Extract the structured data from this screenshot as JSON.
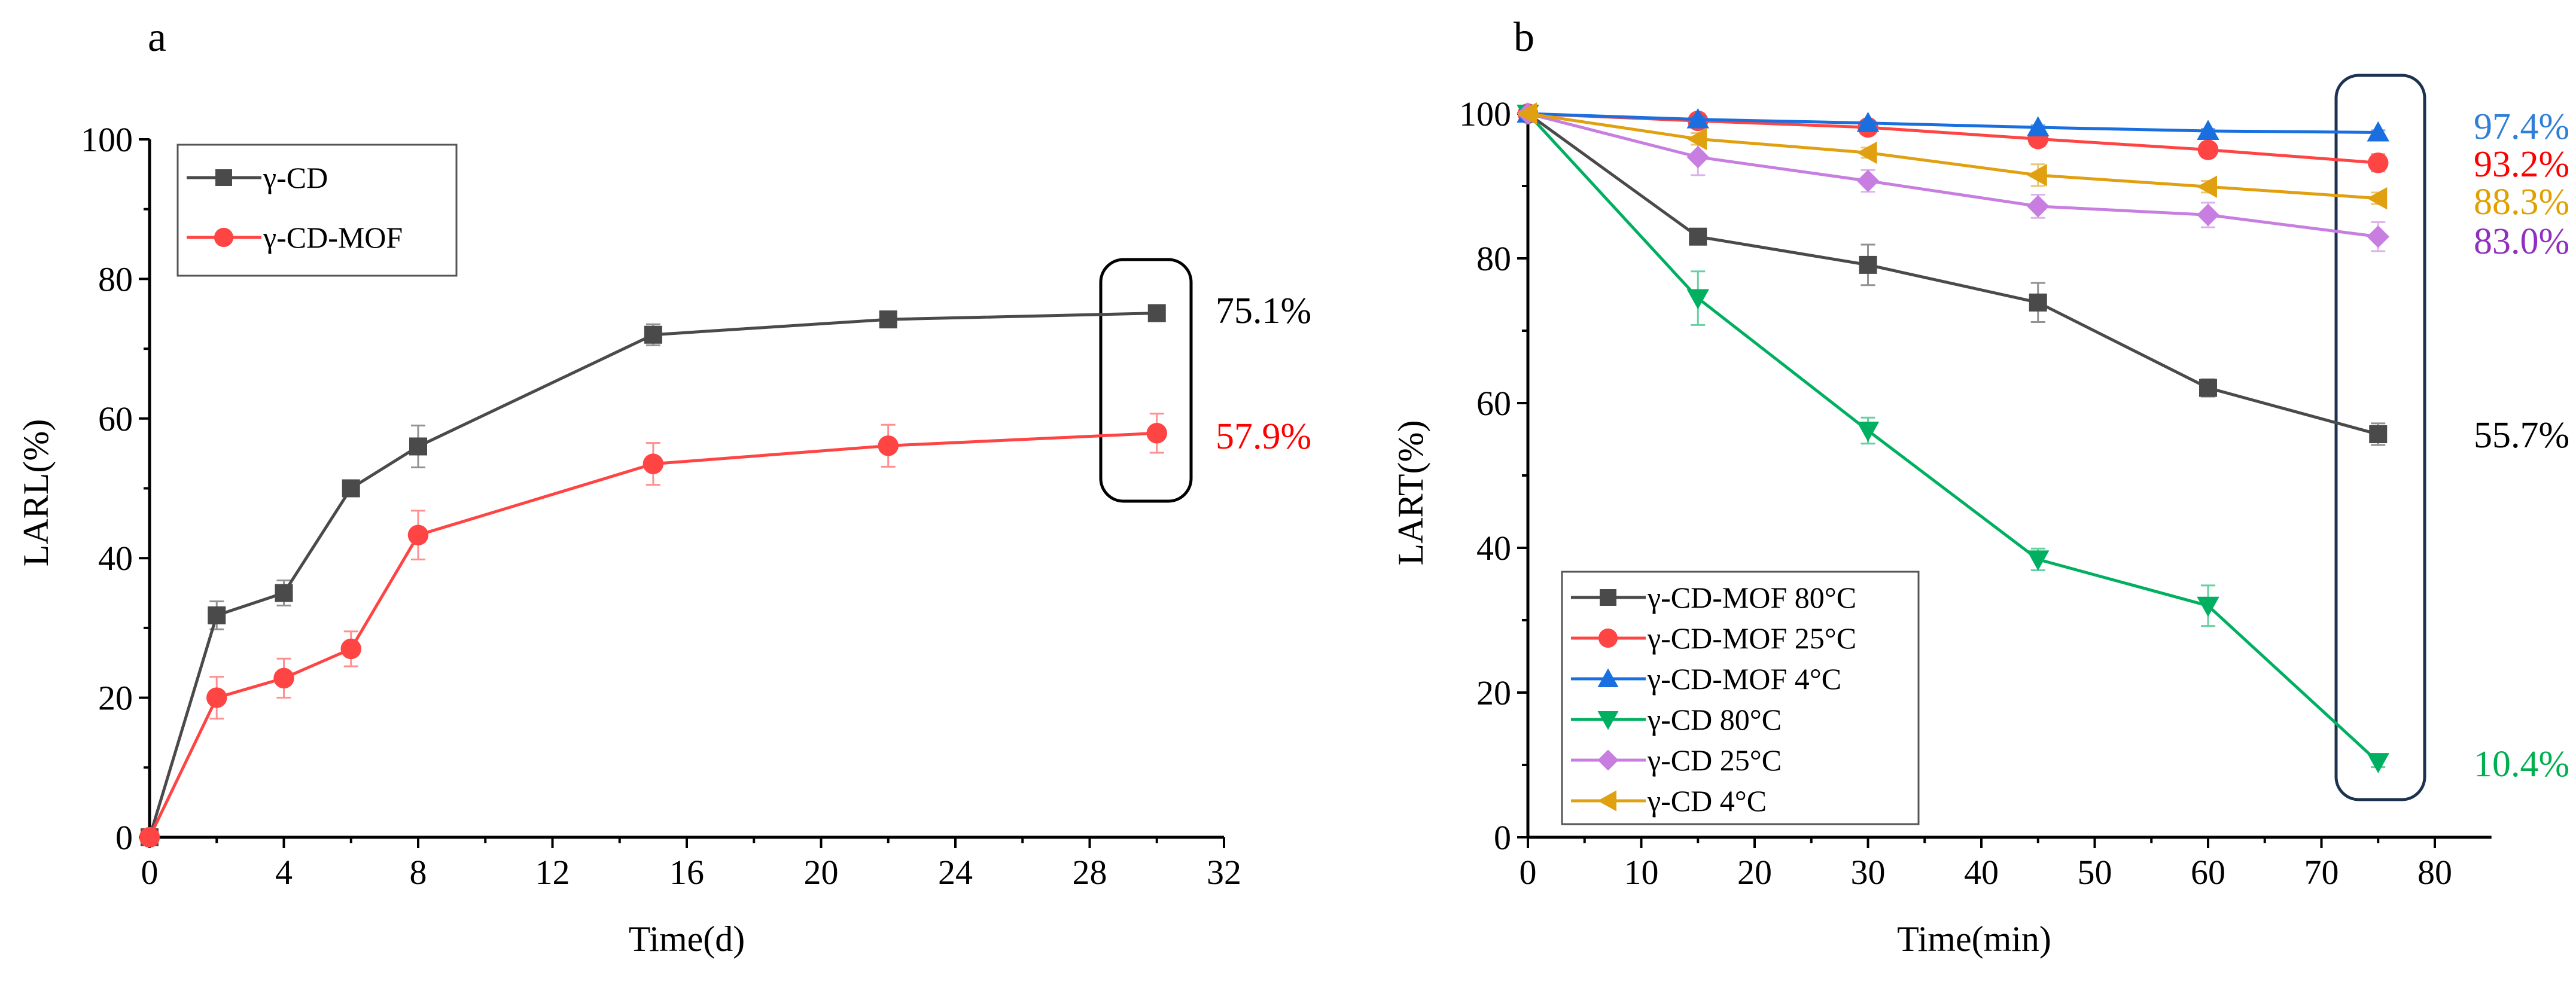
{
  "chart_data": [
    {
      "id": "a",
      "type": "line",
      "panel_label": "a",
      "xlabel": "Time(d)",
      "ylabel": "LARL(%)",
      "xlim": [
        0,
        32
      ],
      "ylim": [
        0,
        100
      ],
      "xticks": [
        0,
        4,
        8,
        12,
        16,
        20,
        24,
        28,
        32
      ],
      "yticks": [
        0,
        20,
        40,
        60,
        80,
        100
      ],
      "grid": false,
      "legend_position": "top-left",
      "x": [
        0,
        2,
        4,
        6,
        8,
        15,
        22,
        30
      ],
      "series": [
        {
          "name": "γ-CD",
          "color": "#4a4a4a",
          "marker": "square",
          "values": [
            0,
            31.8,
            35.0,
            50.0,
            56.0,
            72.0,
            74.2,
            75.1
          ],
          "errors": [
            0,
            2.0,
            1.8,
            1.0,
            3.0,
            1.5,
            0.8,
            0.5
          ]
        },
        {
          "name": "γ-CD-MOF",
          "color": "#ff4444",
          "marker": "circle",
          "values": [
            0,
            20.0,
            22.8,
            27.0,
            43.3,
            53.5,
            56.1,
            57.9
          ],
          "errors": [
            0,
            3.0,
            2.8,
            2.5,
            3.5,
            3.0,
            3.0,
            2.8
          ]
        }
      ],
      "annotations": [
        {
          "text": "75.1%",
          "color": "#000000",
          "value": 75.1
        },
        {
          "text": "57.9%",
          "color": "#ff0000",
          "value": 57.9
        }
      ]
    },
    {
      "id": "b",
      "type": "line",
      "panel_label": "b",
      "xlabel": "Time(min)",
      "ylabel": "LART(%)",
      "xlim": [
        0,
        85
      ],
      "ylim": [
        0,
        100
      ],
      "xticks": [
        0,
        10,
        20,
        30,
        40,
        50,
        60,
        70,
        80
      ],
      "yticks": [
        0,
        20,
        40,
        60,
        80,
        100
      ],
      "grid": false,
      "legend_position": "bottom-left",
      "x": [
        0,
        15,
        30,
        45,
        60,
        75
      ],
      "series": [
        {
          "name": "γ-CD-MOF 80°C",
          "color": "#4a4a4a",
          "marker": "square",
          "values": [
            100,
            83.0,
            79.1,
            73.9,
            62.1,
            55.7
          ],
          "errors": [
            0,
            0.5,
            2.8,
            2.7,
            1.2,
            1.5
          ]
        },
        {
          "name": "γ-CD-MOF 25°C",
          "color": "#ff4444",
          "marker": "circle",
          "values": [
            100,
            99.0,
            98.1,
            96.5,
            95.0,
            93.2
          ],
          "errors": [
            0,
            1.0,
            0.5,
            1.0,
            1.0,
            1.2
          ]
        },
        {
          "name": "γ-CD-MOF 4°C",
          "color": "#1a6fe0",
          "marker": "triangle-up",
          "values": [
            100,
            99.2,
            98.7,
            98.1,
            97.6,
            97.4
          ],
          "errors": [
            0,
            0.4,
            0.3,
            0.3,
            0.3,
            0.3
          ]
        },
        {
          "name": "γ-CD 80°C",
          "color": "#00b060",
          "marker": "triangle-down",
          "values": [
            100,
            74.5,
            56.2,
            38.4,
            32.0,
            10.4
          ],
          "errors": [
            0,
            3.7,
            1.8,
            1.5,
            2.8,
            0.7
          ]
        },
        {
          "name": "γ-CD 25°C",
          "color": "#c77ee0",
          "marker": "diamond",
          "values": [
            100,
            94.0,
            90.7,
            87.2,
            86.0,
            83.0
          ],
          "errors": [
            0,
            2.5,
            1.5,
            1.6,
            1.7,
            2.0
          ]
        },
        {
          "name": "γ-CD 4°C",
          "color": "#e0a010",
          "marker": "triangle-left",
          "values": [
            100,
            96.5,
            94.6,
            91.5,
            89.9,
            88.3
          ],
          "errors": [
            0,
            0.8,
            0.7,
            1.5,
            0.8,
            0.8
          ]
        }
      ],
      "annotations": [
        {
          "text": "97.4%",
          "color": "#2f7fd8",
          "value": 97.4
        },
        {
          "text": "93.2%",
          "color": "#ff0000",
          "value": 93.2
        },
        {
          "text": "88.3%",
          "color": "#e0a000",
          "value": 88.3
        },
        {
          "text": "83.0%",
          "color": "#9030c0",
          "value": 83.0
        },
        {
          "text": "55.7%",
          "color": "#000000",
          "value": 55.7
        },
        {
          "text": "10.4%",
          "color": "#00b050",
          "value": 10.4
        }
      ]
    }
  ]
}
